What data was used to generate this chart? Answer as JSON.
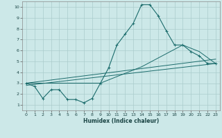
{
  "xlabel": "Humidex (Indice chaleur)",
  "background_color": "#cce8e8",
  "grid_color": "#aacccc",
  "line_color": "#1a6b6b",
  "xlim": [
    -0.5,
    23.5
  ],
  "ylim": [
    0.5,
    10.5
  ],
  "yticks": [
    1,
    2,
    3,
    4,
    5,
    6,
    7,
    8,
    9,
    10
  ],
  "xticks": [
    0,
    1,
    2,
    3,
    4,
    5,
    6,
    7,
    8,
    9,
    10,
    11,
    12,
    13,
    14,
    15,
    16,
    17,
    18,
    19,
    20,
    21,
    22,
    23
  ],
  "series1_x": [
    0,
    1,
    2,
    3,
    4,
    5,
    6,
    7,
    8,
    9,
    10,
    11,
    12,
    13,
    14,
    15,
    16,
    17,
    18,
    19,
    20,
    21,
    22,
    23
  ],
  "series1_y": [
    3.0,
    2.7,
    1.6,
    2.4,
    2.4,
    1.5,
    1.5,
    1.2,
    1.6,
    3.0,
    4.4,
    6.5,
    7.5,
    8.5,
    10.2,
    10.2,
    9.2,
    7.8,
    6.5,
    6.5,
    5.9,
    5.5,
    4.8,
    4.8
  ],
  "series2_x": [
    0,
    23
  ],
  "series2_y": [
    2.8,
    4.8
  ],
  "series3_x": [
    0,
    23
  ],
  "series3_y": [
    3.0,
    5.2
  ],
  "series4_x": [
    0,
    9,
    14,
    19,
    21,
    23
  ],
  "series4_y": [
    3.0,
    3.0,
    4.5,
    6.5,
    5.9,
    4.8
  ]
}
